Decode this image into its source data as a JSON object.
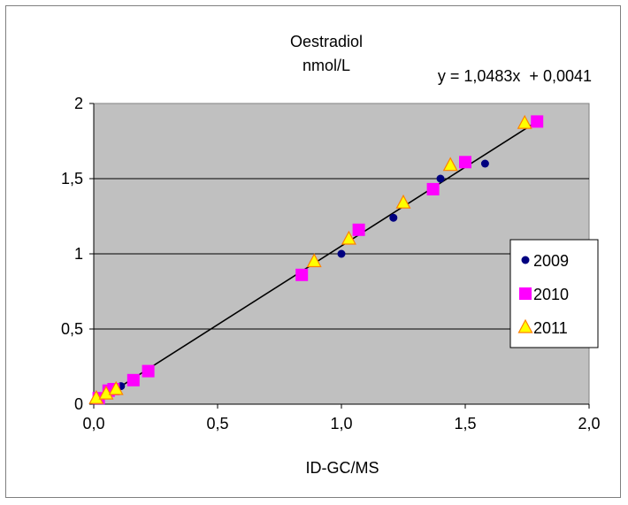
{
  "chart_data": {
    "type": "scatter",
    "title": "Oestradiol",
    "subtitle": "nmol/L",
    "xlabel": "ID-GC/MS",
    "ylabel": "",
    "xlim": [
      0,
      2
    ],
    "ylim": [
      0,
      2
    ],
    "x_ticks": [
      "0,0",
      "0,5",
      "1,0",
      "1,5",
      "2,0"
    ],
    "y_ticks": [
      "0",
      "0,5",
      "1",
      "1,5",
      "2"
    ],
    "grid": "horizontal",
    "plot_background": "#c0c0c0",
    "legend_position": "right",
    "trendline": {
      "label": "y = 1,0483x  + 0,0041",
      "slope": 1.0483,
      "intercept": 0.0041,
      "x_range": [
        0.01,
        1.79
      ]
    },
    "series": [
      {
        "name": "2009",
        "marker": "circle",
        "color": "#000080",
        "points": [
          [
            0.11,
            0.12
          ],
          [
            1.0,
            1.0
          ],
          [
            1.21,
            1.24
          ],
          [
            1.4,
            1.5
          ],
          [
            1.58,
            1.6
          ]
        ]
      },
      {
        "name": "2010",
        "marker": "square",
        "color": "#ff00ff",
        "points": [
          [
            0.02,
            0.04
          ],
          [
            0.06,
            0.09
          ],
          [
            0.08,
            0.1
          ],
          [
            0.16,
            0.16
          ],
          [
            0.22,
            0.22
          ],
          [
            0.84,
            0.86
          ],
          [
            1.07,
            1.16
          ],
          [
            1.37,
            1.43
          ],
          [
            1.5,
            1.61
          ],
          [
            1.79,
            1.88
          ]
        ]
      },
      {
        "name": "2011",
        "marker": "triangle",
        "color": "#ffff00",
        "stroke": "#ff8000",
        "points": [
          [
            0.01,
            0.04
          ],
          [
            0.05,
            0.07
          ],
          [
            0.09,
            0.1
          ],
          [
            0.89,
            0.95
          ],
          [
            1.03,
            1.1
          ],
          [
            1.25,
            1.34
          ],
          [
            1.44,
            1.59
          ],
          [
            1.74,
            1.87
          ]
        ]
      }
    ]
  }
}
